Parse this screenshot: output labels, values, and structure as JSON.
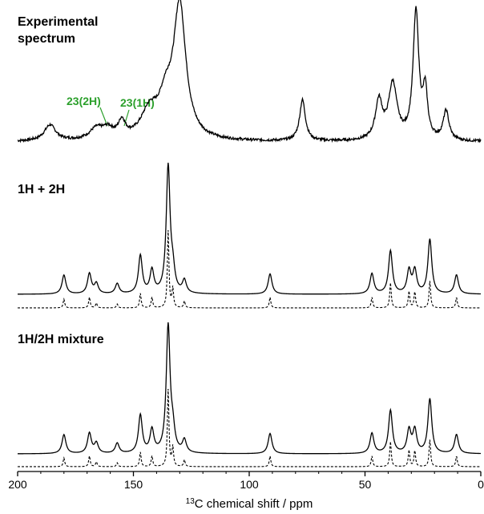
{
  "chart_data": {
    "type": "line",
    "xlabel_sup": "13",
    "xlabel": "C chemical shift / ppm",
    "xlim": [
      200,
      0
    ],
    "x_reversed": true,
    "x_ticks": [
      "200",
      "150",
      "100",
      "50",
      "0"
    ],
    "grid": false,
    "panels": [
      {
        "title_line1": "Experimental",
        "title_line2": "spectrum",
        "series": [
          {
            "style": "solid",
            "noise": 0.02,
            "peaks": [
              {
                "ppm": 186,
                "h": 0.12,
                "w": 3.0
              },
              {
                "ppm": 166,
                "h": 0.08,
                "w": 3.5
              },
              {
                "ppm": 161,
                "h": 0.07,
                "w": 3.0
              },
              {
                "ppm": 155,
                "h": 0.12,
                "w": 1.8
              },
              {
                "ppm": 143,
                "h": 0.2,
                "w": 4.5
              },
              {
                "ppm": 136,
                "h": 0.25,
                "w": 3.5
              },
              {
                "ppm": 130,
                "h": 1.0,
                "w": 3.2
              },
              {
                "ppm": 77,
                "h": 0.31,
                "w": 1.5
              },
              {
                "ppm": 44,
                "h": 0.29,
                "w": 1.8
              },
              {
                "ppm": 38,
                "h": 0.42,
                "w": 2.2
              },
              {
                "ppm": 28,
                "h": 0.96,
                "w": 1.5
              },
              {
                "ppm": 24,
                "h": 0.35,
                "w": 1.2
              },
              {
                "ppm": 15,
                "h": 0.22,
                "w": 1.5
              }
            ]
          }
        ],
        "annotations": [
          {
            "text": "23(2H)",
            "ppm": 162
          },
          {
            "text": "23(1H)",
            "ppm": 155
          }
        ]
      },
      {
        "title": "1H + 2H",
        "series": [
          {
            "style": "solid",
            "peaks": [
              {
                "ppm": 180,
                "h": 0.15,
                "w": 1.0
              },
              {
                "ppm": 169,
                "h": 0.16,
                "w": 1.0
              },
              {
                "ppm": 166,
                "h": 0.08,
                "w": 1.0
              },
              {
                "ppm": 157,
                "h": 0.08,
                "w": 1.0
              },
              {
                "ppm": 147,
                "h": 0.3,
                "w": 1.0
              },
              {
                "ppm": 142,
                "h": 0.18,
                "w": 1.0
              },
              {
                "ppm": 135,
                "h": 1.0,
                "w": 1.0
              },
              {
                "ppm": 133,
                "h": 0.15,
                "w": 1.0
              },
              {
                "ppm": 128,
                "h": 0.1,
                "w": 1.0
              },
              {
                "ppm": 91,
                "h": 0.16,
                "w": 1.0
              },
              {
                "ppm": 47,
                "h": 0.16,
                "w": 1.0
              },
              {
                "ppm": 39,
                "h": 0.34,
                "w": 1.0
              },
              {
                "ppm": 31,
                "h": 0.18,
                "w": 1.0
              },
              {
                "ppm": 28.5,
                "h": 0.18,
                "w": 1.0
              },
              {
                "ppm": 22,
                "h": 0.43,
                "w": 1.0
              },
              {
                "ppm": 10.5,
                "h": 0.15,
                "w": 1.0
              }
            ]
          },
          {
            "style": "dashed",
            "peaks": [
              {
                "ppm": 180,
                "h": 0.09,
                "w": 0.4
              },
              {
                "ppm": 169,
                "h": 0.11,
                "w": 0.4
              },
              {
                "ppm": 166,
                "h": 0.05,
                "w": 0.4
              },
              {
                "ppm": 157,
                "h": 0.04,
                "w": 0.4
              },
              {
                "ppm": 147,
                "h": 0.15,
                "w": 0.4
              },
              {
                "ppm": 142,
                "h": 0.11,
                "w": 0.4
              },
              {
                "ppm": 135,
                "h": 0.8,
                "w": 0.4
              },
              {
                "ppm": 133,
                "h": 0.2,
                "w": 0.4
              },
              {
                "ppm": 128,
                "h": 0.07,
                "w": 0.4
              },
              {
                "ppm": 91,
                "h": 0.11,
                "w": 0.4
              },
              {
                "ppm": 47,
                "h": 0.11,
                "w": 0.4
              },
              {
                "ppm": 39,
                "h": 0.26,
                "w": 0.4
              },
              {
                "ppm": 31,
                "h": 0.17,
                "w": 0.4
              },
              {
                "ppm": 28.5,
                "h": 0.17,
                "w": 0.4
              },
              {
                "ppm": 22,
                "h": 0.28,
                "w": 0.4
              },
              {
                "ppm": 10.5,
                "h": 0.11,
                "w": 0.4
              }
            ]
          }
        ]
      },
      {
        "title": "1H/2H mixture",
        "series": [
          {
            "style": "solid",
            "peaks": [
              {
                "ppm": 180,
                "h": 0.15,
                "w": 1.0
              },
              {
                "ppm": 169,
                "h": 0.16,
                "w": 1.0
              },
              {
                "ppm": 166,
                "h": 0.08,
                "w": 1.0
              },
              {
                "ppm": 157,
                "h": 0.08,
                "w": 1.0
              },
              {
                "ppm": 147,
                "h": 0.3,
                "w": 1.0
              },
              {
                "ppm": 142,
                "h": 0.18,
                "w": 1.0
              },
              {
                "ppm": 135,
                "h": 1.0,
                "w": 1.0
              },
              {
                "ppm": 133,
                "h": 0.15,
                "w": 1.0
              },
              {
                "ppm": 128,
                "h": 0.1,
                "w": 1.0
              },
              {
                "ppm": 91,
                "h": 0.16,
                "w": 1.0
              },
              {
                "ppm": 47,
                "h": 0.16,
                "w": 1.0
              },
              {
                "ppm": 39,
                "h": 0.34,
                "w": 1.0
              },
              {
                "ppm": 31,
                "h": 0.18,
                "w": 1.0
              },
              {
                "ppm": 28.5,
                "h": 0.18,
                "w": 1.0
              },
              {
                "ppm": 22,
                "h": 0.43,
                "w": 1.0
              },
              {
                "ppm": 10.5,
                "h": 0.15,
                "w": 1.0
              }
            ]
          },
          {
            "style": "dashed",
            "peaks": [
              {
                "ppm": 180,
                "h": 0.09,
                "w": 0.4
              },
              {
                "ppm": 169,
                "h": 0.11,
                "w": 0.4
              },
              {
                "ppm": 166,
                "h": 0.05,
                "w": 0.4
              },
              {
                "ppm": 157,
                "h": 0.04,
                "w": 0.4
              },
              {
                "ppm": 147,
                "h": 0.15,
                "w": 0.4
              },
              {
                "ppm": 142,
                "h": 0.11,
                "w": 0.4
              },
              {
                "ppm": 135,
                "h": 0.8,
                "w": 0.4
              },
              {
                "ppm": 133,
                "h": 0.2,
                "w": 0.4
              },
              {
                "ppm": 128,
                "h": 0.07,
                "w": 0.4
              },
              {
                "ppm": 91,
                "h": 0.11,
                "w": 0.4
              },
              {
                "ppm": 47,
                "h": 0.11,
                "w": 0.4
              },
              {
                "ppm": 39,
                "h": 0.26,
                "w": 0.4
              },
              {
                "ppm": 31,
                "h": 0.17,
                "w": 0.4
              },
              {
                "ppm": 28.5,
                "h": 0.17,
                "w": 0.4
              },
              {
                "ppm": 22,
                "h": 0.28,
                "w": 0.4
              },
              {
                "ppm": 10.5,
                "h": 0.11,
                "w": 0.4
              }
            ]
          }
        ]
      }
    ]
  },
  "colors": {
    "trace": "#000000",
    "annotation": "#2ca02c"
  }
}
